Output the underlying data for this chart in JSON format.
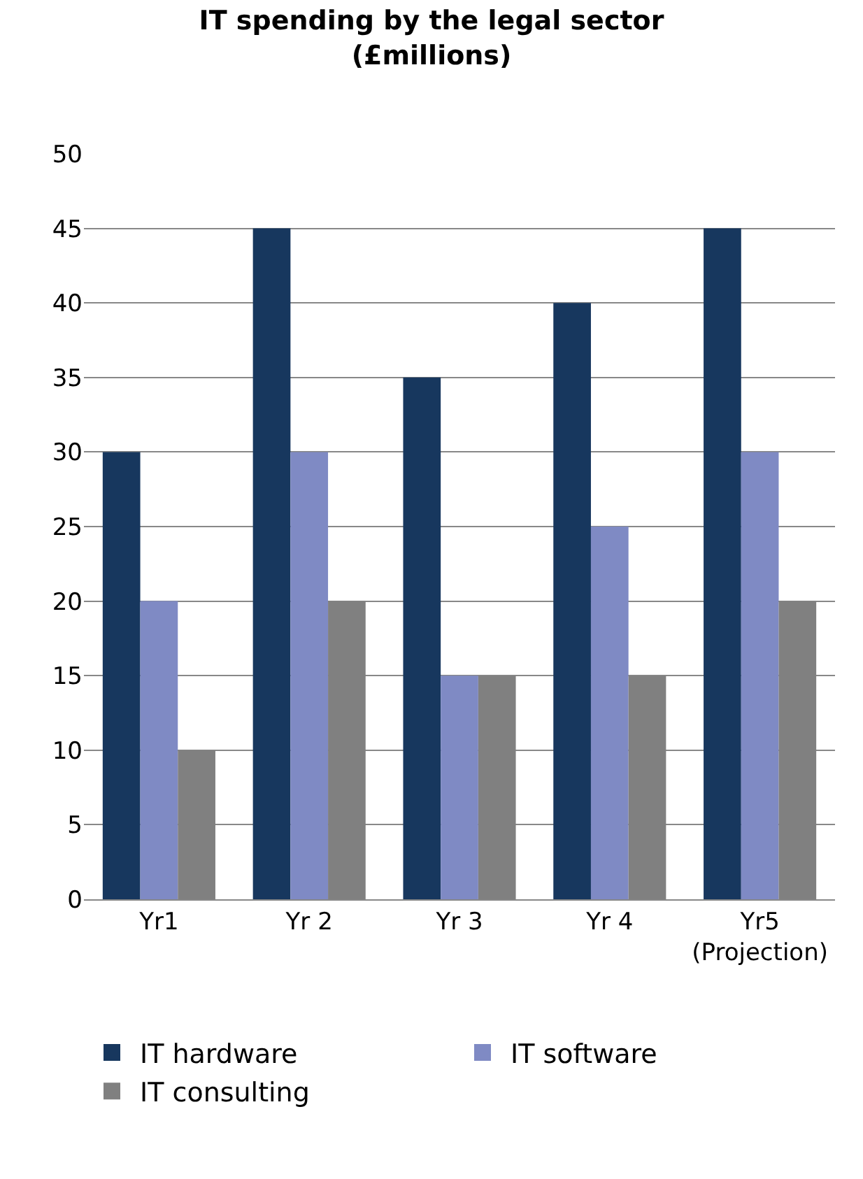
{
  "chart_data": {
    "type": "bar",
    "title": "IT spending by the legal sector\n(£millions)",
    "categories": [
      "Yr1",
      "Yr 2",
      "Yr 3",
      "Yr 4",
      "Yr5\n(Projection)"
    ],
    "series": [
      {
        "name": "IT hardware",
        "color": "#17375e",
        "values": [
          30,
          45,
          35,
          40,
          45
        ]
      },
      {
        "name": "IT software",
        "color": "#7f8ac4",
        "values": [
          20,
          30,
          15,
          25,
          30
        ]
      },
      {
        "name": "IT consulting",
        "color": "#808080",
        "values": [
          10,
          20,
          15,
          15,
          20
        ]
      }
    ],
    "ylim": [
      0,
      50
    ],
    "yticks": [
      0,
      5,
      10,
      15,
      20,
      25,
      30,
      35,
      40,
      45,
      50
    ],
    "grid": "y",
    "legend": "bottom"
  }
}
